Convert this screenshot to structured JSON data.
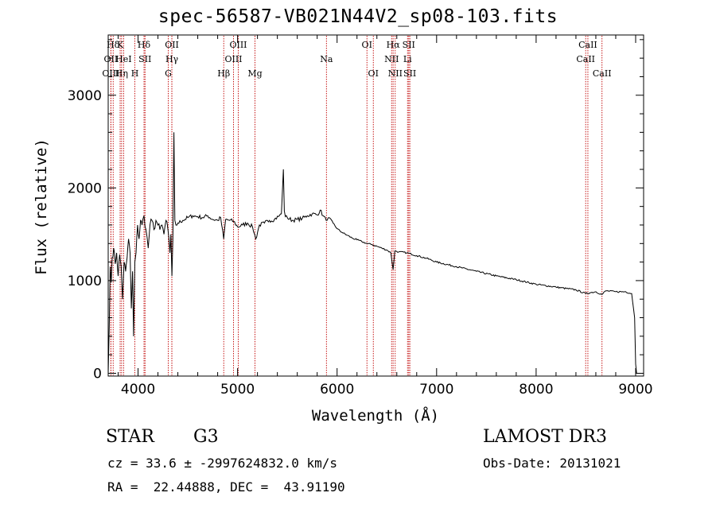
{
  "chart_data": {
    "type": "line",
    "title": "spec-56587-VB021N44V2_sp08-103.fits",
    "xlabel": "Wavelength (Å)",
    "ylabel": "Flux (relative)",
    "xlim": [
      3700,
      9080
    ],
    "ylim": [
      -30,
      3650
    ],
    "xticks": [
      4000,
      5000,
      6000,
      7000,
      8000,
      9000
    ],
    "yticks": [
      0,
      1000,
      2000,
      3000
    ],
    "xtick_labels": [
      "4000",
      "5000",
      "6000",
      "7000",
      "8000",
      "9000"
    ],
    "ytick_labels": [
      "0",
      "1000",
      "2000",
      "3000"
    ],
    "series": [
      {
        "name": "spectrum",
        "x": [
          3700,
          3710,
          3720,
          3730,
          3740,
          3755,
          3770,
          3785,
          3800,
          3815,
          3830,
          3845,
          3860,
          3875,
          3890,
          3905,
          3920,
          3933,
          3945,
          3955,
          3968,
          3980,
          3995,
          4010,
          4025,
          4040,
          4060,
          4080,
          4102,
          4120,
          4140,
          4160,
          4180,
          4200,
          4220,
          4240,
          4260,
          4280,
          4300,
          4320,
          4330,
          4340,
          4350,
          4360,
          4370,
          4380,
          4400,
          4450,
          4500,
          4550,
          4600,
          4650,
          4700,
          4750,
          4800,
          4830,
          4861,
          4880,
          4920,
          4960,
          5000,
          5050,
          5100,
          5150,
          5183,
          5220,
          5270,
          5320,
          5370,
          5420,
          5440,
          5460,
          5470,
          5480,
          5500,
          5550,
          5600,
          5650,
          5700,
          5750,
          5800,
          5830,
          5860,
          5890,
          5920,
          5960,
          6000,
          6050,
          6100,
          6150,
          6200,
          6250,
          6300,
          6350,
          6400,
          6450,
          6500,
          6540,
          6563,
          6580,
          6620,
          6700,
          6800,
          6900,
          7000,
          7200,
          7400,
          7600,
          7800,
          8000,
          8200,
          8400,
          8498,
          8542,
          8600,
          8662,
          8700,
          8800,
          8900,
          8960,
          8990,
          9000,
          9010
        ],
        "y": [
          0,
          500,
          1150,
          980,
          1250,
          1350,
          1180,
          1300,
          1050,
          1280,
          1150,
          800,
          1200,
          1100,
          1250,
          1450,
          1300,
          700,
          1100,
          400,
          1200,
          1300,
          1600,
          1450,
          1650,
          1600,
          1700,
          1550,
          1350,
          1600,
          1650,
          1550,
          1650,
          1600,
          1550,
          1600,
          1500,
          1650,
          1550,
          1300,
          1500,
          1050,
          1450,
          2600,
          1650,
          1600,
          1620,
          1650,
          1680,
          1700,
          1690,
          1680,
          1700,
          1660,
          1650,
          1680,
          1450,
          1660,
          1650,
          1640,
          1580,
          1600,
          1620,
          1580,
          1450,
          1600,
          1620,
          1650,
          1660,
          1700,
          1720,
          2200,
          1750,
          1690,
          1680,
          1650,
          1660,
          1670,
          1700,
          1720,
          1710,
          1760,
          1700,
          1650,
          1680,
          1620,
          1560,
          1520,
          1490,
          1460,
          1440,
          1420,
          1400,
          1390,
          1370,
          1350,
          1330,
          1300,
          1120,
          1320,
          1310,
          1300,
          1270,
          1240,
          1200,
          1150,
          1100,
          1050,
          1010,
          960,
          930,
          900,
          860,
          870,
          880,
          850,
          890,
          880,
          880,
          860,
          600,
          100,
          0
        ]
      }
    ],
    "lines": [
      {
        "label": "Hδ",
        "x": 3750,
        "row": 1
      },
      {
        "label": "K",
        "x": 3820,
        "row": 1
      },
      {
        "label": "Hδ",
        "x": 4060,
        "row": 1
      },
      {
        "label": "OII",
        "x": 4340,
        "row": 1
      },
      {
        "label": "OIII",
        "x": 5007,
        "row": 1
      },
      {
        "label": "OI",
        "x": 6300,
        "row": 1
      },
      {
        "label": "Hα",
        "x": 6563,
        "row": 1
      },
      {
        "label": "SII",
        "x": 6720,
        "row": 1
      },
      {
        "label": "CaII",
        "x": 8520,
        "row": 1
      },
      {
        "label": "OII",
        "x": 3727,
        "row": 2
      },
      {
        "label": "HeI",
        "x": 3855,
        "row": 2
      },
      {
        "label": "SII",
        "x": 4070,
        "row": 2
      },
      {
        "label": "Hγ",
        "x": 4340,
        "row": 2
      },
      {
        "label": "OIII",
        "x": 4959,
        "row": 2
      },
      {
        "label": "Na",
        "x": 5893,
        "row": 2
      },
      {
        "label": "NII",
        "x": 6548,
        "row": 2
      },
      {
        "label": "Li",
        "x": 6708,
        "row": 2
      },
      {
        "label": "CaII",
        "x": 8498,
        "row": 2
      },
      {
        "label": "OIII",
        "x": 3727,
        "row": 3
      },
      {
        "label": "Hη",
        "x": 3835,
        "row": 3
      },
      {
        "label": "H",
        "x": 3968,
        "row": 3
      },
      {
        "label": "G",
        "x": 4304,
        "row": 3
      },
      {
        "label": "Hβ",
        "x": 4861,
        "row": 3
      },
      {
        "label": "Mg",
        "x": 5175,
        "row": 3
      },
      {
        "label": "OI",
        "x": 6364,
        "row": 3
      },
      {
        "label": "NII",
        "x": 6584,
        "row": 3
      },
      {
        "label": "SII",
        "x": 6731,
        "row": 3
      },
      {
        "label": "CaII",
        "x": 8662,
        "row": 3
      }
    ],
    "line_color": "#c00000"
  },
  "info": {
    "class": "STAR",
    "subclass": "G3",
    "survey": "LAMOST DR3",
    "cz": "cz = 33.6 ± -2997624832.0 km/s",
    "obs_date": "Obs-Date: 20131021",
    "coords": "RA =  22.44888, DEC =  43.91190"
  }
}
